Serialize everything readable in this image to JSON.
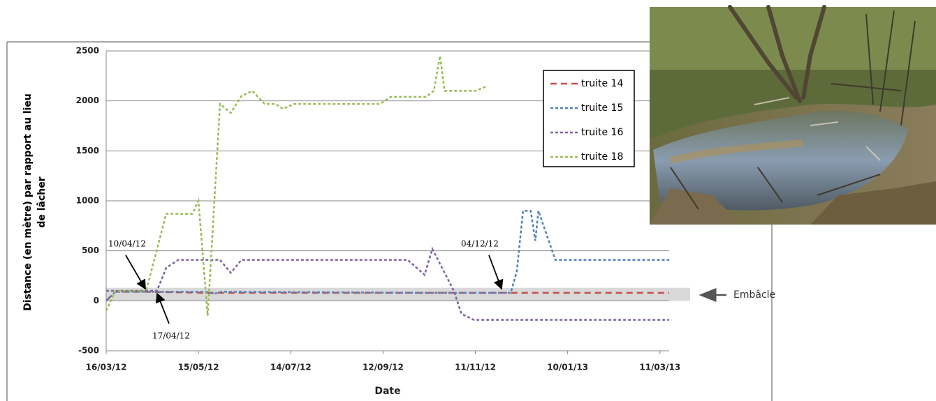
{
  "chart_data": {
    "type": "line",
    "ylabel": [
      "Distance (en mètre) par rapport au lieu",
      "de lâcher"
    ],
    "xlabel": "Date",
    "xlim": [
      "16/03/12",
      "17/03/13"
    ],
    "xticks": [
      "16/03/12",
      "15/05/12",
      "14/07/12",
      "12/09/12",
      "11/11/12",
      "10/01/13",
      "11/03/13"
    ],
    "ylim": [
      -500,
      2500
    ],
    "yticks": [
      -500,
      0,
      500,
      1000,
      1500,
      2000,
      2500
    ],
    "grid": true,
    "legend": "upper right",
    "series": [
      {
        "name": "truite 14",
        "color": "#c0504d",
        "x": [
          "16/03/12",
          "22/03/12",
          "11/04/12",
          "20/05/12",
          "10/07/12",
          "10/10/12",
          "04/12/12",
          "17/03/13"
        ],
        "values": [
          0,
          90,
          90,
          80,
          80,
          80,
          80,
          80
        ]
      },
      {
        "name": "truite 15",
        "color": "#4f81bd",
        "x": [
          "16/03/12",
          "22/03/12",
          "11/04/12",
          "20/05/12",
          "25/05/12",
          "30/05/12",
          "10/10/12",
          "04/12/12",
          "08/12/12",
          "12/12/12",
          "17/12/12",
          "20/12/12",
          "22/12/12",
          "02/01/13",
          "17/03/13"
        ],
        "values": [
          0,
          90,
          90,
          90,
          70,
          90,
          80,
          80,
          300,
          900,
          900,
          600,
          900,
          410,
          410
        ]
      },
      {
        "name": "truite 16",
        "color": "#8064a2",
        "x": [
          "16/03/12",
          "18/04/12",
          "24/04/12",
          "02/05/12",
          "29/05/12",
          "05/06/12",
          "12/06/12",
          "28/09/12",
          "09/10/12",
          "14/10/12",
          "28/10/12",
          "02/11/12",
          "10/11/12",
          "17/03/13"
        ],
        "values": [
          100,
          100,
          330,
          410,
          410,
          280,
          410,
          410,
          260,
          520,
          100,
          -130,
          -190,
          -190
        ]
      },
      {
        "name": "truite 18",
        "color": "#9bbb59",
        "x": [
          "16/03/12",
          "22/03/12",
          "11/04/12",
          "24/04/12",
          "11/05/12",
          "15/05/12",
          "21/05/12",
          "29/05/12",
          "05/06/12",
          "12/06/12",
          "19/06/12",
          "27/06/12",
          "04/07/12",
          "09/07/12",
          "16/07/12",
          "10/09/12",
          "17/09/12",
          "10/10/12",
          "15/10/12",
          "19/10/12",
          "22/10/12",
          "11/11/12",
          "19/11/12"
        ],
        "values": [
          -100,
          100,
          100,
          870,
          870,
          1000,
          -150,
          1970,
          1880,
          2050,
          2100,
          1970,
          1970,
          1920,
          1970,
          1970,
          2040,
          2040,
          2100,
          2450,
          2100,
          2100,
          2150
        ]
      }
    ],
    "band": {
      "label": "Embâcle",
      "ymin": 0,
      "ymax": 130
    },
    "annotations": [
      "10/04/12",
      "17/04/12",
      "04/12/12"
    ]
  }
}
